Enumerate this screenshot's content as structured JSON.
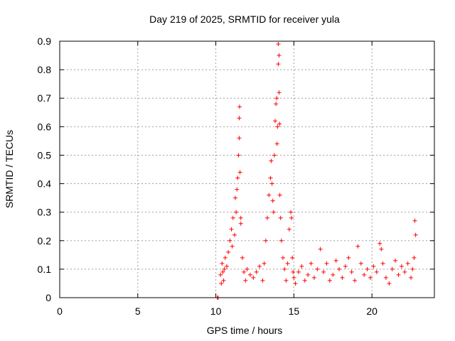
{
  "chart_data": {
    "type": "scatter",
    "title": "Day 219 of 2025, SRMTID for receiver yula",
    "xlabel": "GPS time / hours",
    "ylabel": "SRMTID / TECUs",
    "xlim": [
      0,
      24
    ],
    "ylim": [
      0,
      0.9
    ],
    "xticks": [
      0,
      5,
      10,
      15,
      20
    ],
    "xtick_labels": [
      "0",
      "5",
      "10",
      "15",
      "20"
    ],
    "yticks": [
      0,
      0.1,
      0.2,
      0.3,
      0.4,
      0.5,
      0.6,
      0.7,
      0.8,
      0.9
    ],
    "ytick_labels": [
      "0",
      "0.1",
      "0.2",
      "0.3",
      "0.4",
      "0.5",
      "0.6",
      "0.7",
      "0.8",
      "0.9"
    ],
    "grid": true,
    "legend": "none",
    "marker": "+",
    "color": "#ff0000",
    "series": [
      {
        "name": "SRMTID",
        "x": [
          10.1,
          10.15,
          10.3,
          10.35,
          10.4,
          10.45,
          10.5,
          10.55,
          10.6,
          10.7,
          10.8,
          10.9,
          11.0,
          11.05,
          11.1,
          11.2,
          11.25,
          11.3,
          11.35,
          11.4,
          11.45,
          11.5,
          11.5,
          11.52,
          11.55,
          11.6,
          11.6,
          11.7,
          11.8,
          11.9,
          12.0,
          12.2,
          12.4,
          12.6,
          12.8,
          13.0,
          13.1,
          13.2,
          13.3,
          13.4,
          13.5,
          13.55,
          13.6,
          13.65,
          13.7,
          13.75,
          13.8,
          13.85,
          13.9,
          13.92,
          13.95,
          14.0,
          14.0,
          14.05,
          14.05,
          14.08,
          14.1,
          14.15,
          14.2,
          14.3,
          14.4,
          14.5,
          14.6,
          14.7,
          14.8,
          14.85,
          14.9,
          14.95,
          15.0,
          15.1,
          15.3,
          15.5,
          15.7,
          15.9,
          16.1,
          16.3,
          16.5,
          16.7,
          16.9,
          17.1,
          17.3,
          17.5,
          17.7,
          17.9,
          18.1,
          18.3,
          18.5,
          18.7,
          18.9,
          19.1,
          19.3,
          19.5,
          19.7,
          19.9,
          20.1,
          20.3,
          20.5,
          20.6,
          20.7,
          20.9,
          21.1,
          21.3,
          21.5,
          21.7,
          21.9,
          22.1,
          22.3,
          22.5,
          22.6,
          22.7,
          22.75,
          22.8
        ],
        "y": [
          0.0,
          0.0,
          0.08,
          0.05,
          0.12,
          0.09,
          0.06,
          0.1,
          0.14,
          0.11,
          0.16,
          0.2,
          0.24,
          0.18,
          0.28,
          0.22,
          0.35,
          0.3,
          0.38,
          0.42,
          0.5,
          0.56,
          0.63,
          0.67,
          0.44,
          0.28,
          0.26,
          0.14,
          0.09,
          0.06,
          0.1,
          0.08,
          0.07,
          0.09,
          0.11,
          0.06,
          0.12,
          0.2,
          0.28,
          0.36,
          0.42,
          0.48,
          0.4,
          0.34,
          0.3,
          0.5,
          0.62,
          0.68,
          0.7,
          0.54,
          0.6,
          0.82,
          0.89,
          0.85,
          0.72,
          0.61,
          0.36,
          0.28,
          0.2,
          0.14,
          0.1,
          0.06,
          0.12,
          0.24,
          0.3,
          0.28,
          0.14,
          0.09,
          0.07,
          0.05,
          0.09,
          0.11,
          0.06,
          0.08,
          0.12,
          0.07,
          0.1,
          0.17,
          0.09,
          0.12,
          0.06,
          0.08,
          0.13,
          0.1,
          0.07,
          0.11,
          0.14,
          0.09,
          0.06,
          0.18,
          0.12,
          0.08,
          0.1,
          0.07,
          0.11,
          0.09,
          0.19,
          0.17,
          0.12,
          0.07,
          0.05,
          0.1,
          0.13,
          0.08,
          0.11,
          0.09,
          0.12,
          0.07,
          0.1,
          0.14,
          0.27,
          0.22
        ]
      }
    ]
  }
}
